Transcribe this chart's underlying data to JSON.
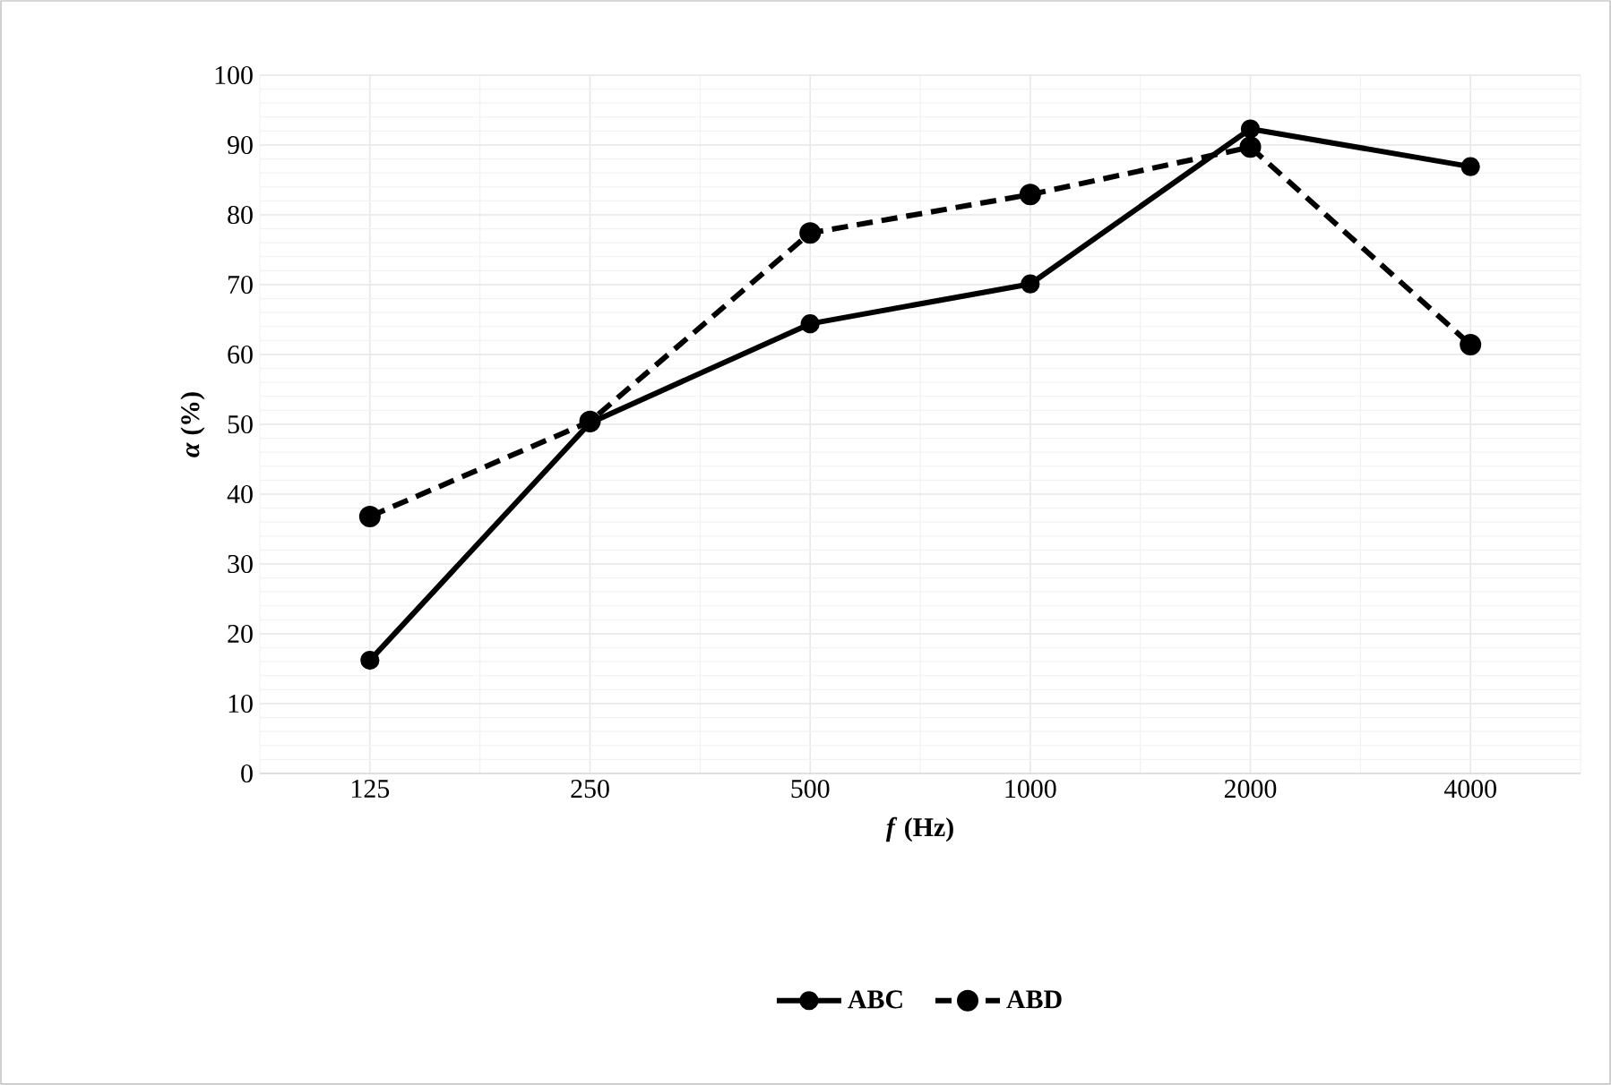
{
  "chart_data": {
    "type": "line",
    "xlabel": "*f* (Hz)",
    "ylabel": "*α* (%)",
    "categories": [
      "125",
      "250",
      "500",
      "1000",
      "2000",
      "4000"
    ],
    "series": [
      {
        "name": "ABC",
        "color": "#000000",
        "line_style": "solid",
        "values": [
          16.2,
          50.2,
          64.4,
          70.1,
          92.3,
          86.9
        ]
      },
      {
        "name": "ABD",
        "color": "#000000",
        "line_style": "dashed",
        "values": [
          36.8,
          50.4,
          77.4,
          82.9,
          89.7,
          61.4
        ]
      }
    ],
    "ylim": [
      0,
      100
    ],
    "yticks": [
      0,
      10,
      20,
      30,
      40,
      50,
      60,
      70,
      80,
      90,
      100
    ],
    "grid": true,
    "legend": "bottom",
    "marker": "circle"
  }
}
